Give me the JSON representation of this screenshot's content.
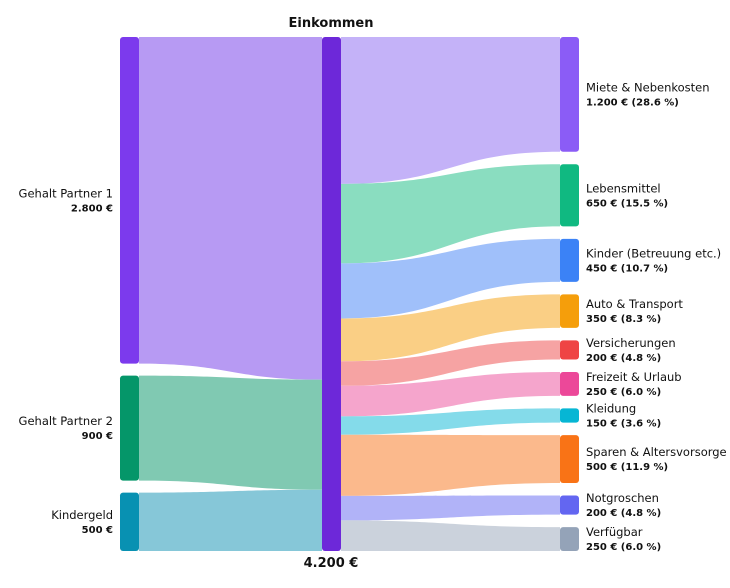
{
  "title": "Einkommen",
  "total_label": "4.200 €",
  "sources": [
    {
      "name": "Gehalt Partner 1",
      "value": 2800,
      "value_label": "2.800 €",
      "color": "#7c3aed",
      "link_color": "#b79af3"
    },
    {
      "name": "Gehalt Partner 2",
      "value": 900,
      "value_label": "900 €",
      "color": "#059669",
      "link_color": "#80c9b2"
    },
    {
      "name": "Kindergeld",
      "value": 500,
      "value_label": "500 €",
      "color": "#0891b2",
      "link_color": "#86c7d8"
    }
  ],
  "center": {
    "name": "Einkommen",
    "value": 4200,
    "color": "#6d28d9"
  },
  "targets": [
    {
      "name": "Miete & Nebenkosten",
      "value": 1200,
      "value_label": "1.200 € (28.6 %)",
      "color": "#8b5cf6",
      "link_color": "#c4b2f8"
    },
    {
      "name": "Lebensmittel",
      "value": 650,
      "value_label": "650 € (15.5 %)",
      "color": "#10b981",
      "link_color": "#8addc0"
    },
    {
      "name": "Kinder (Betreuung etc.)",
      "value": 450,
      "value_label": "450 € (10.7 %)",
      "color": "#3b82f6",
      "link_color": "#a0c0fa"
    },
    {
      "name": "Auto & Transport",
      "value": 350,
      "value_label": "350 € (8.3 %)",
      "color": "#f59e0b",
      "link_color": "#facf85"
    },
    {
      "name": "Versicherungen",
      "value": 200,
      "value_label": "200 € (4.8 %)",
      "color": "#ef4444",
      "link_color": "#f6a3a3"
    },
    {
      "name": "Freizeit & Urlaub",
      "value": 250,
      "value_label": "250 € (6.0 %)",
      "color": "#ec4899",
      "link_color": "#f5a5cc"
    },
    {
      "name": "Kleidung",
      "value": 150,
      "value_label": "150 € (3.6 %)",
      "color": "#06b6d4",
      "link_color": "#84dbea"
    },
    {
      "name": "Sparen & Altersvorsorge",
      "value": 500,
      "value_label": "500 € (11.9 %)",
      "color": "#f97316",
      "link_color": "#fbb98c"
    },
    {
      "name": "Notgroschen",
      "value": 200,
      "value_label": "200 € (4.8 %)",
      "color": "#6366f1",
      "link_color": "#b1b3f8"
    },
    {
      "name": "Verfügbar",
      "value": 250,
      "value_label": "250 € (6.0 %)",
      "color": "#94a3b8",
      "link_color": "#cbd2dc"
    }
  ]
}
